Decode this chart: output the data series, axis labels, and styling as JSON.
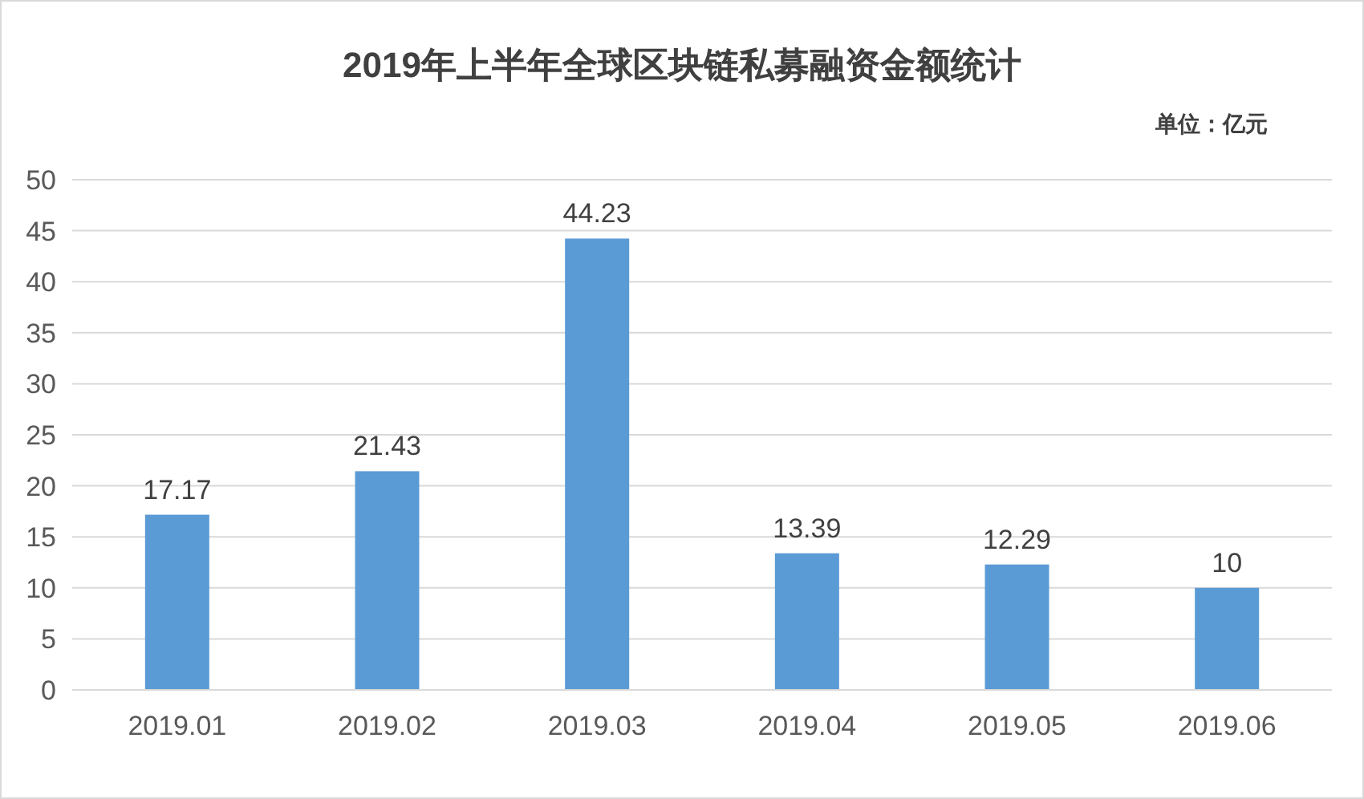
{
  "chart_data": {
    "type": "bar",
    "title": "2019年上半年全球区块链私募融资金额统计",
    "annotations": [
      "单位：亿元"
    ],
    "categories": [
      "2019.01",
      "2019.02",
      "2019.03",
      "2019.04",
      "2019.05",
      "2019.06"
    ],
    "values": [
      17.17,
      21.43,
      44.23,
      13.39,
      12.29,
      10
    ],
    "color": "#5b9bd5",
    "ylim": [
      0,
      50
    ],
    "yticks": [
      0,
      5,
      10,
      15,
      20,
      25,
      30,
      35,
      40,
      45,
      50
    ],
    "grid": "y",
    "data_labels": true
  }
}
